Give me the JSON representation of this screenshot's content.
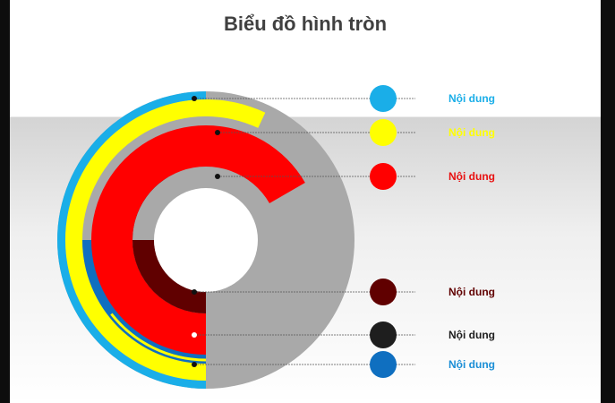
{
  "slide": {
    "title": "Biểu đồ hình tròn"
  },
  "chart_data": {
    "type": "radial-bar",
    "title": "Biểu đồ hình tròn",
    "max_degrees": 360,
    "background_ring_color": "#a9a9a9",
    "series": [
      {
        "label": "Nội dung",
        "color": "#1aaee8",
        "label_color": "#1aaee8",
        "degrees": 180
      },
      {
        "label": "Nội dung",
        "color": "#ffff00",
        "label_color": "#ffff00",
        "degrees": 205
      },
      {
        "label": "Nội dung",
        "color": "#ff0000",
        "label_color": "#e81010",
        "degrees": 240
      },
      {
        "label": "Nội dung",
        "color": "#600000",
        "label_color": "#600000",
        "degrees": 90
      },
      {
        "label": "Nội dung",
        "color": "#1e1e1e",
        "label_color": "#1e1e1e",
        "degrees": 155
      },
      {
        "label": "Nội dung",
        "color": "#0f6fc0",
        "label_color": "#1a8ed6",
        "degrees": 90
      }
    ]
  }
}
